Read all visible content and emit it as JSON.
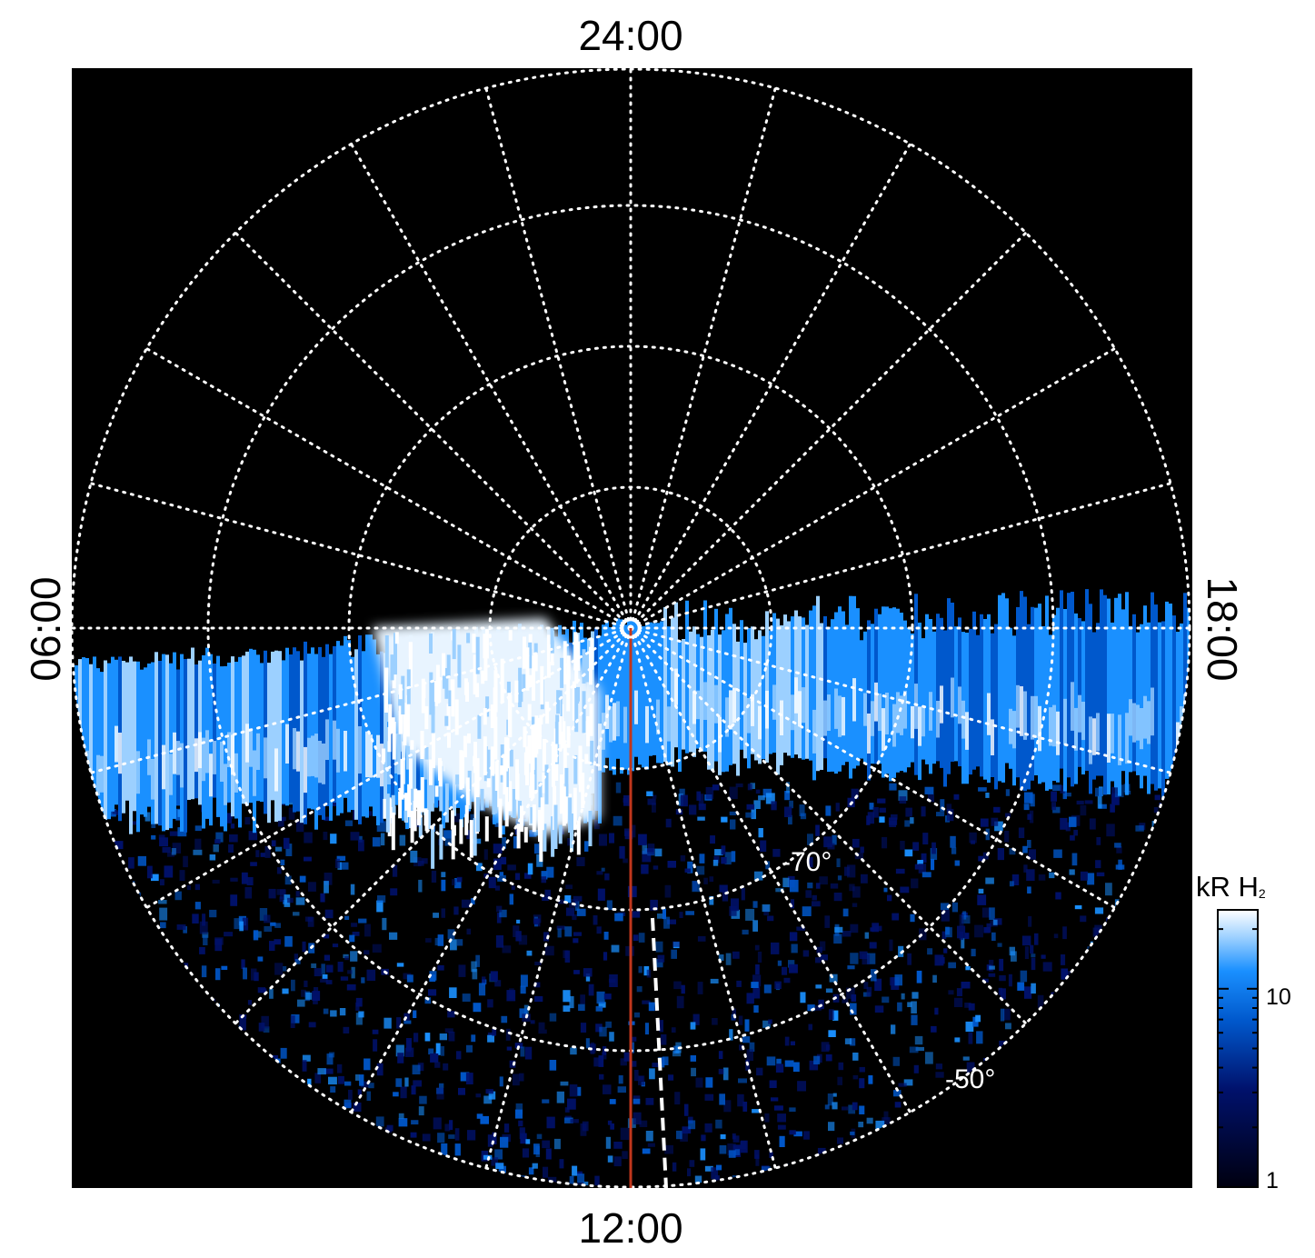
{
  "labels": {
    "top": "24:00",
    "bottom": "12:00",
    "left": "06:00",
    "right": "18:00"
  },
  "colorbar": {
    "unit": "kR",
    "species": "H",
    "species_sub": "2",
    "scale": "log",
    "range": [
      1,
      25
    ],
    "ticks": [
      "10",
      "1"
    ]
  },
  "chart_data": {
    "type": "heatmap",
    "projection": "polar",
    "hemisphere": "south",
    "local_time_labels": [
      "24:00",
      "06:00",
      "12:00",
      "18:00"
    ],
    "latitude_labels": [
      "-70°",
      "-50°"
    ],
    "graticule": "dotted",
    "colors": {
      "background": "#000000",
      "graticule": "#ffffff",
      "meridian_line": "#c0361c",
      "dashed_line": "#ffffff",
      "colormap": [
        "#000010",
        "#00116b",
        "#0058cc",
        "#1a90ff",
        "#9cd0ff",
        "#ffffff"
      ]
    },
    "auroral_oval": {
      "description_values_kR": {
        "dawn_peak": 25,
        "noon_bright": 20,
        "dusk_arc": 10,
        "background_noise": 2
      }
    }
  }
}
